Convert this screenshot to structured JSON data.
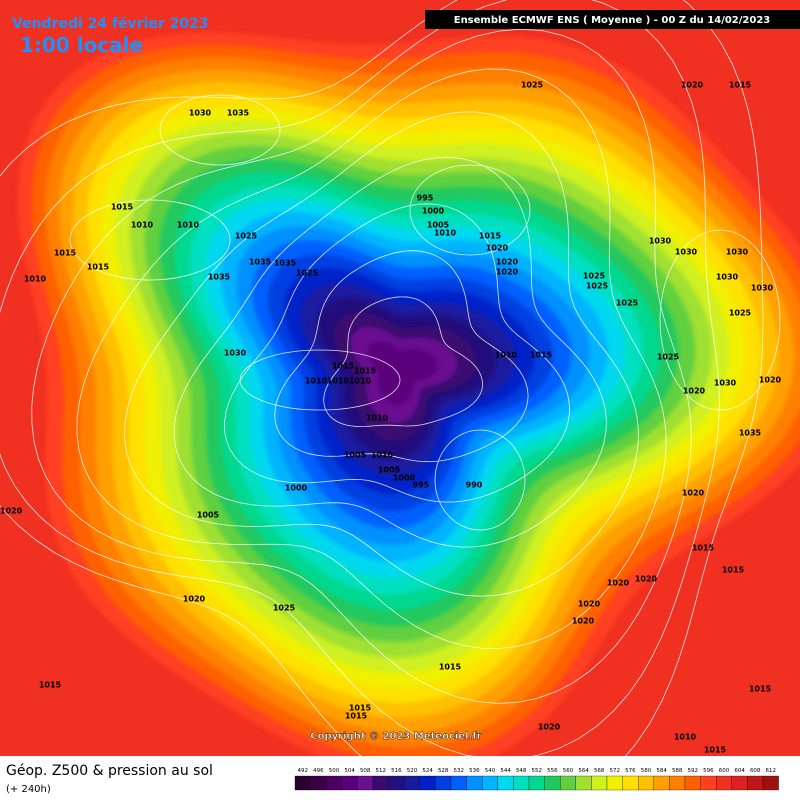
{
  "header": {
    "date": "Vendredi 24 février 2023",
    "time": "1:00 locale",
    "model": "Ensemble ECMWF ENS  ( Moyenne )  - 00 Z du 14/02/2023"
  },
  "footer": {
    "title": "Géop. Z500 & pression au sol",
    "range": "(+ 240h)",
    "copyright": "Copyright © 2023 Meteociel.fr"
  },
  "legend": {
    "levels": [
      492,
      496,
      500,
      504,
      508,
      512,
      516,
      520,
      524,
      528,
      532,
      536,
      540,
      544,
      548,
      552,
      556,
      560,
      564,
      568,
      572,
      576,
      580,
      584,
      588,
      592,
      596,
      600,
      604,
      608,
      612
    ]
  },
  "isobar_labels": [
    1030,
    1035,
    1025,
    1020,
    1015,
    1015,
    1010,
    1010,
    1025,
    1015,
    1010,
    1015,
    1035,
    1035,
    1035,
    1025,
    995,
    1000,
    1005,
    1010,
    1015,
    1020,
    1020,
    1020,
    1030,
    1030,
    1030,
    1030,
    1025,
    1025,
    1025,
    1030,
    1015,
    1015,
    1010,
    1010,
    1010,
    1010,
    1015,
    1010,
    1005,
    1010,
    1005,
    1000,
    995,
    990,
    1000,
    1005,
    1020,
    1020,
    1025,
    1020,
    1020,
    1020,
    1020,
    1015,
    1015,
    1015,
    1015,
    1020,
    1020,
    1015,
    1015,
    1020,
    1025,
    1020,
    1030,
    1035,
    1015,
    1010,
    1015,
    1025,
    1030
  ]
}
